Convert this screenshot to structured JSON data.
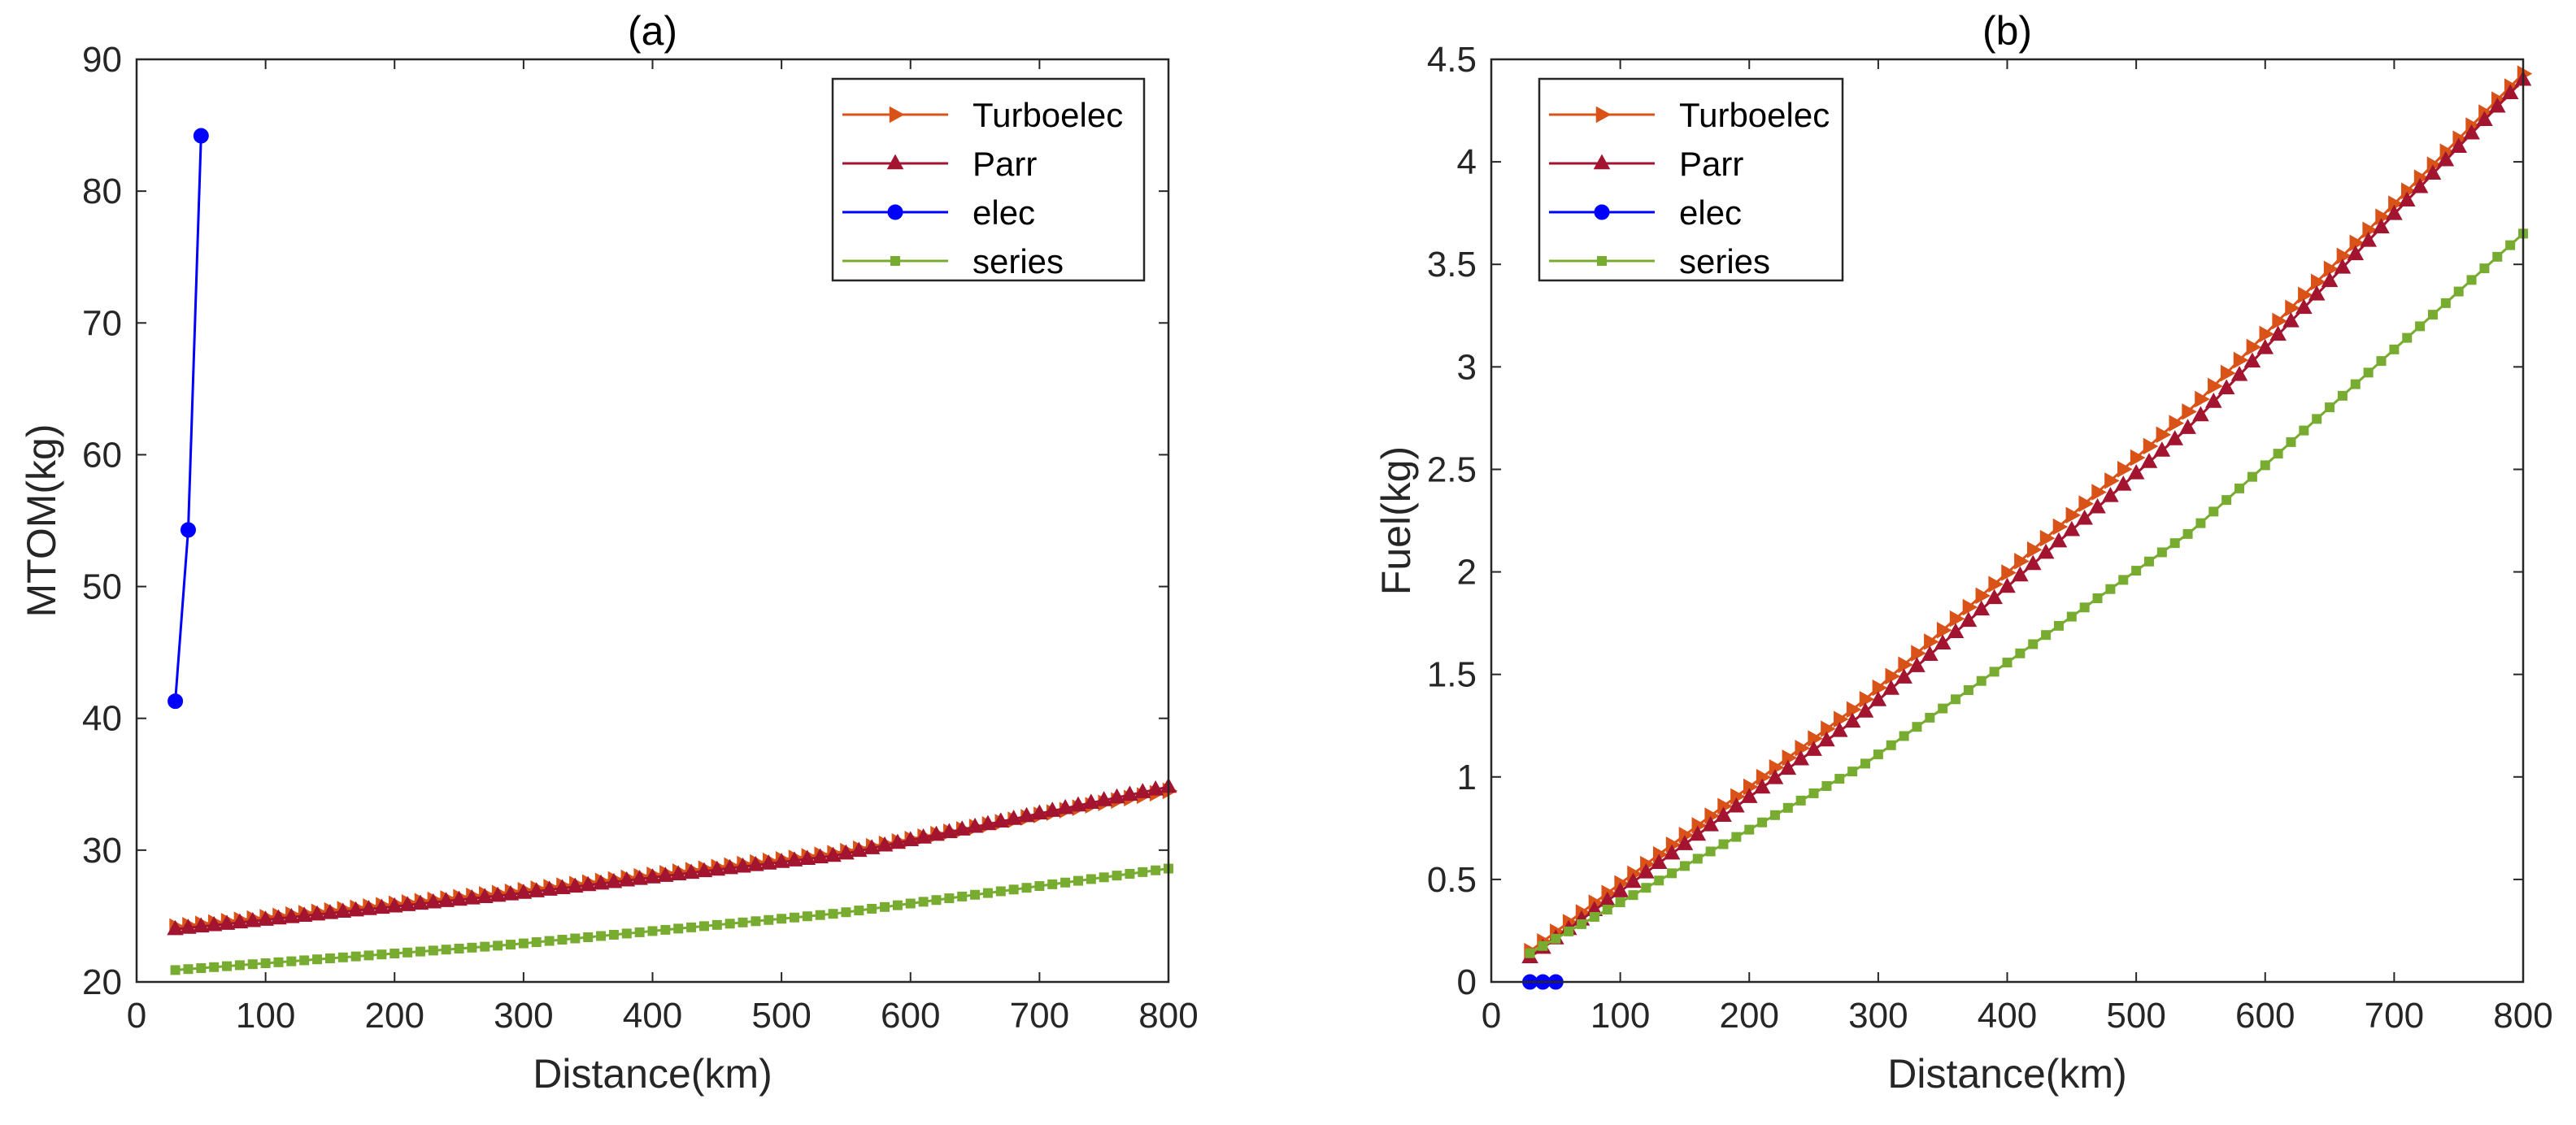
{
  "chart_data": [
    {
      "id": "a",
      "type": "line",
      "title": "(a)",
      "xlabel": "Distance(km)",
      "ylabel": "MTOM(kg)",
      "xlim": [
        0,
        800
      ],
      "ylim": [
        20,
        90
      ],
      "xticks": [
        0,
        100,
        200,
        300,
        400,
        500,
        600,
        700,
        800
      ],
      "yticks": [
        20,
        30,
        40,
        50,
        60,
        70,
        80,
        90
      ],
      "xtick_labels": [
        "0",
        "100",
        "200",
        "300",
        "400",
        "500",
        "600",
        "700",
        "800"
      ],
      "ytick_labels": [
        "20",
        "30",
        "40",
        "50",
        "60",
        "70",
        "80",
        "90"
      ],
      "legend_position": "top-right",
      "series": [
        {
          "name": "Turboelec",
          "color": "#D95319",
          "marker": "triangle-right",
          "x_start": 30,
          "x_end": 800,
          "x_step": 10,
          "curve": [
            24.2,
            26.8,
            29.8,
            34.5
          ]
        },
        {
          "name": "Parr",
          "color": "#A2142F",
          "marker": "triangle-up",
          "x_start": 30,
          "x_end": 800,
          "x_step": 10,
          "curve": [
            24.0,
            26.6,
            29.6,
            34.8
          ]
        },
        {
          "name": "elec",
          "color": "#0000FF",
          "marker": "circle",
          "x": [
            30,
            40,
            50
          ],
          "y": [
            41.3,
            54.3,
            84.2
          ]
        },
        {
          "name": "series",
          "color": "#77AC30",
          "marker": "square",
          "x_start": 30,
          "x_end": 800,
          "x_step": 10,
          "curve": [
            20.9,
            22.8,
            25.2,
            28.6
          ]
        }
      ]
    },
    {
      "id": "b",
      "type": "line",
      "title": "(b)",
      "xlabel": "Distance(km)",
      "ylabel": "Fuel(kg)",
      "xlim": [
        0,
        800
      ],
      "ylim": [
        0,
        4.5
      ],
      "xticks": [
        0,
        100,
        200,
        300,
        400,
        500,
        600,
        700,
        800
      ],
      "yticks": [
        0,
        0.5,
        1,
        1.5,
        2,
        2.5,
        3,
        3.5,
        4,
        4.5
      ],
      "xtick_labels": [
        "0",
        "100",
        "200",
        "300",
        "400",
        "500",
        "600",
        "700",
        "800"
      ],
      "ytick_labels": [
        "0",
        "0.5",
        "1",
        "1.5",
        "2",
        "2.5",
        "3",
        "3.5",
        "4",
        "4.5"
      ],
      "legend_position": "top-left",
      "series": [
        {
          "name": "Turboelec",
          "color": "#D95319",
          "marker": "triangle-right",
          "x_start": 30,
          "x_end": 800,
          "x_step": 10,
          "curve": [
            0.15,
            1.36,
            2.8,
            4.43
          ]
        },
        {
          "name": "Parr",
          "color": "#A2142F",
          "marker": "triangle-up",
          "x_start": 30,
          "x_end": 800,
          "x_step": 10,
          "curve": [
            0.12,
            1.3,
            2.72,
            4.4
          ]
        },
        {
          "name": "elec",
          "color": "#0000FF",
          "marker": "circle",
          "x": [
            30,
            40,
            50
          ],
          "y": [
            0,
            0,
            0
          ]
        },
        {
          "name": "series",
          "color": "#77AC30",
          "marker": "square",
          "x_start": 30,
          "x_end": 800,
          "x_step": 10,
          "curve": [
            0.14,
            1.05,
            2.2,
            3.65
          ]
        }
      ]
    }
  ]
}
